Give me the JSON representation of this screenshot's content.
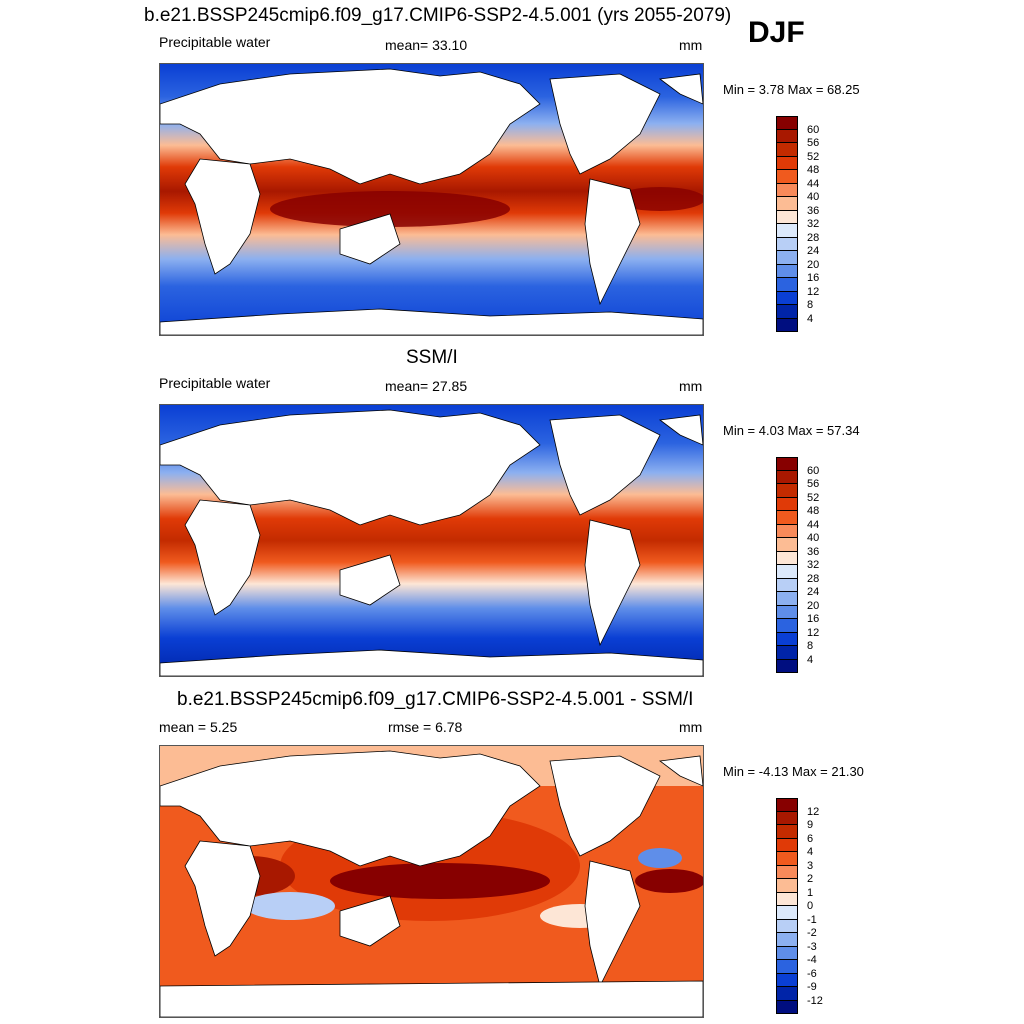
{
  "season": "DJF",
  "panels": [
    {
      "title": "b.e21.BSSP245cmip6.f09_g17.CMIP6-SSP2-4.5.001 (yrs 2055-2079)",
      "left_label": "Precipitable water",
      "center_label": "mean=  33.10",
      "units": "mm",
      "minmax": "Min =   3.78 Max =  68.25",
      "levels": [
        "60",
        "56",
        "52",
        "48",
        "44",
        "40",
        "36",
        "32",
        "28",
        "24",
        "20",
        "16",
        "12",
        "8",
        "4"
      ],
      "colors": [
        "#870000",
        "#a81800",
        "#c32b00",
        "#e03a07",
        "#f05a1e",
        "#f88a5a",
        "#fcbc94",
        "#fde6d6",
        "#dce9fb",
        "#b8cff6",
        "#8cb0f0",
        "#5f8ee9",
        "#2b63e0",
        "#0a3fd4",
        "#0024a8",
        "#000e80"
      ]
    },
    {
      "title": "SSM/I",
      "left_label": "Precipitable water",
      "center_label": "mean=  27.85",
      "units": "mm",
      "minmax": "Min =   4.03 Max =  57.34",
      "levels": [
        "60",
        "56",
        "52",
        "48",
        "44",
        "40",
        "36",
        "32",
        "28",
        "24",
        "20",
        "16",
        "12",
        "8",
        "4"
      ],
      "colors": [
        "#870000",
        "#a81800",
        "#c32b00",
        "#e03a07",
        "#f05a1e",
        "#f88a5a",
        "#fcbc94",
        "#fde6d6",
        "#dce9fb",
        "#b8cff6",
        "#8cb0f0",
        "#5f8ee9",
        "#2b63e0",
        "#0a3fd4",
        "#0024a8",
        "#000e80"
      ]
    },
    {
      "title": "b.e21.BSSP245cmip6.f09_g17.CMIP6-SSP2-4.5.001 - SSM/I",
      "left_label": "mean =   5.25",
      "center_label": "rmse =   6.78",
      "units": "mm",
      "minmax": "Min =  -4.13 Max =  21.30",
      "levels": [
        "12",
        "9",
        "6",
        "4",
        "3",
        "2",
        "1",
        "0",
        "-1",
        "-2",
        "-3",
        "-4",
        "-6",
        "-9",
        "-12"
      ],
      "colors": [
        "#870000",
        "#a81800",
        "#c32b00",
        "#e03a07",
        "#f05a1e",
        "#f88a5a",
        "#fcbc94",
        "#fde6d6",
        "#dce9fb",
        "#b8cff6",
        "#8cb0f0",
        "#5f8ee9",
        "#2b63e0",
        "#0a3fd4",
        "#0024a8",
        "#000e80"
      ]
    }
  ],
  "chart_data": [
    {
      "type": "heatmap",
      "title": "b.e21.BSSP245cmip6.f09_g17.CMIP6-SSP2-4.5.001 (yrs 2055-2079)",
      "variable": "Precipitable water",
      "season": "DJF",
      "units": "mm",
      "mean": 33.1,
      "min": 3.78,
      "max": 68.25,
      "contour_levels": [
        4,
        8,
        12,
        16,
        20,
        24,
        28,
        32,
        36,
        40,
        44,
        48,
        52,
        56,
        60
      ]
    },
    {
      "type": "heatmap",
      "title": "SSM/I",
      "variable": "Precipitable water",
      "season": "DJF",
      "units": "mm",
      "mean": 27.85,
      "min": 4.03,
      "max": 57.34,
      "contour_levels": [
        4,
        8,
        12,
        16,
        20,
        24,
        28,
        32,
        36,
        40,
        44,
        48,
        52,
        56,
        60
      ]
    },
    {
      "type": "heatmap",
      "title": "b.e21.BSSP245cmip6.f09_g17.CMIP6-SSP2-4.5.001 - SSM/I",
      "season": "DJF",
      "units": "mm",
      "mean": 5.25,
      "rmse": 6.78,
      "min": -4.13,
      "max": 21.3,
      "contour_levels": [
        -12,
        -9,
        -6,
        -4,
        -3,
        -2,
        -1,
        0,
        1,
        2,
        3,
        4,
        6,
        9,
        12
      ]
    }
  ]
}
